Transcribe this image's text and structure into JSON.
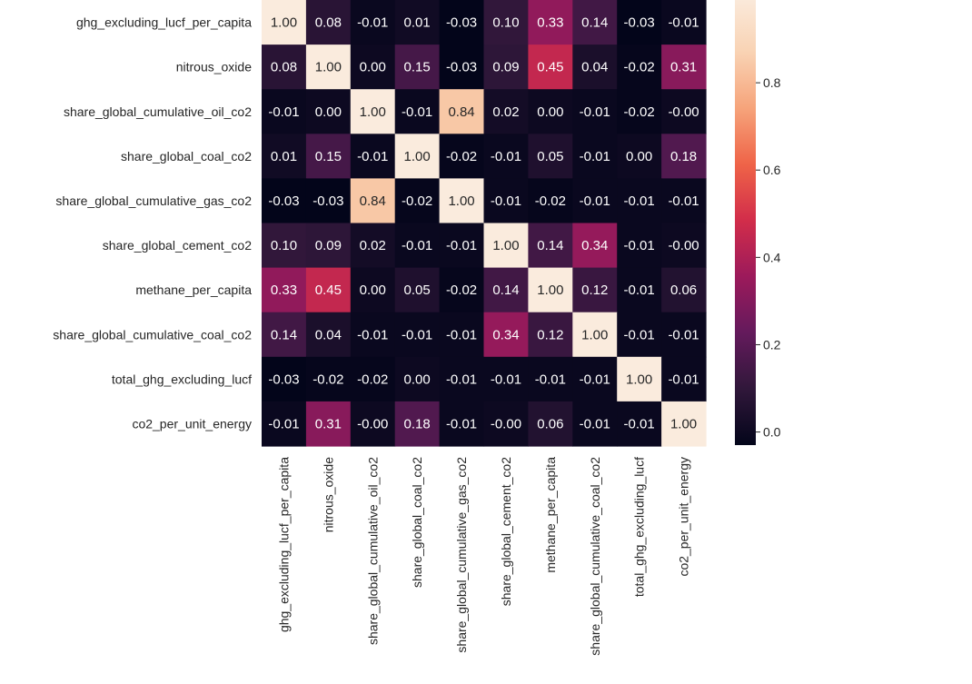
{
  "chart_data": {
    "type": "heatmap",
    "title": "",
    "xlabel": "",
    "ylabel": "",
    "rows": [
      "ghg_excluding_lucf_per_capita",
      "nitrous_oxide",
      "share_global_cumulative_oil_co2",
      "share_global_coal_co2",
      "share_global_cumulative_gas_co2",
      "share_global_cement_co2",
      "methane_per_capita",
      "share_global_cumulative_coal_co2",
      "total_ghg_excluding_lucf",
      "co2_per_unit_energy"
    ],
    "columns": [
      "ghg_excluding_lucf_per_capita",
      "nitrous_oxide",
      "share_global_cumulative_oil_co2",
      "share_global_coal_co2",
      "share_global_cumulative_gas_co2",
      "share_global_cement_co2",
      "methane_per_capita",
      "share_global_cumulative_coal_co2",
      "total_ghg_excluding_lucf",
      "co2_per_unit_energy"
    ],
    "values": [
      [
        1.0,
        0.08,
        -0.01,
        0.01,
        -0.03,
        0.1,
        0.33,
        0.14,
        -0.03,
        -0.01
      ],
      [
        0.08,
        1.0,
        0.0,
        0.15,
        -0.03,
        0.09,
        0.45,
        0.04,
        -0.02,
        0.31
      ],
      [
        -0.01,
        0.0,
        1.0,
        -0.01,
        0.84,
        0.02,
        0.0,
        -0.01,
        -0.02,
        -0.0
      ],
      [
        0.01,
        0.15,
        -0.01,
        1.0,
        -0.02,
        -0.01,
        0.05,
        -0.01,
        0.0,
        0.18
      ],
      [
        -0.03,
        -0.03,
        0.84,
        -0.02,
        1.0,
        -0.01,
        -0.02,
        -0.01,
        -0.01,
        -0.01
      ],
      [
        0.1,
        0.09,
        0.02,
        -0.01,
        -0.01,
        1.0,
        0.14,
        0.34,
        -0.01,
        -0.0
      ],
      [
        0.33,
        0.45,
        0.0,
        0.05,
        -0.02,
        0.14,
        1.0,
        0.12,
        -0.01,
        0.06
      ],
      [
        0.14,
        0.04,
        -0.01,
        -0.01,
        -0.01,
        0.34,
        0.12,
        1.0,
        -0.01,
        -0.01
      ],
      [
        -0.03,
        -0.02,
        -0.02,
        0.0,
        -0.01,
        -0.01,
        -0.01,
        -0.01,
        1.0,
        -0.01
      ],
      [
        -0.01,
        0.31,
        -0.0,
        0.18,
        -0.01,
        -0.0,
        0.06,
        -0.01,
        -0.01,
        1.0
      ]
    ],
    "annotations": [
      [
        "1.00",
        "0.08",
        "-0.01",
        "0.01",
        "-0.03",
        "0.10",
        "0.33",
        "0.14",
        "-0.03",
        "-0.01"
      ],
      [
        "0.08",
        "1.00",
        "0.00",
        "0.15",
        "-0.03",
        "0.09",
        "0.45",
        "0.04",
        "-0.02",
        "0.31"
      ],
      [
        "-0.01",
        "0.00",
        "1.00",
        "-0.01",
        "0.84",
        "0.02",
        "0.00",
        "-0.01",
        "-0.02",
        "-0.00"
      ],
      [
        "0.01",
        "0.15",
        "-0.01",
        "1.00",
        "-0.02",
        "-0.01",
        "0.05",
        "-0.01",
        "0.00",
        "0.18"
      ],
      [
        "-0.03",
        "-0.03",
        "0.84",
        "-0.02",
        "1.00",
        "-0.01",
        "-0.02",
        "-0.01",
        "-0.01",
        "-0.01"
      ],
      [
        "0.10",
        "0.09",
        "0.02",
        "-0.01",
        "-0.01",
        "1.00",
        "0.14",
        "0.34",
        "-0.01",
        "-0.00"
      ],
      [
        "0.33",
        "0.45",
        "0.00",
        "0.05",
        "-0.02",
        "0.14",
        "1.00",
        "0.12",
        "-0.01",
        "0.06"
      ],
      [
        "0.14",
        "0.04",
        "-0.01",
        "-0.01",
        "-0.01",
        "0.34",
        "0.12",
        "1.00",
        "-0.01",
        "-0.01"
      ],
      [
        "-0.03",
        "-0.02",
        "-0.02",
        "0.00",
        "-0.01",
        "-0.01",
        "-0.01",
        "-0.01",
        "1.00",
        "-0.01"
      ],
      [
        "-0.01",
        "0.31",
        "-0.00",
        "0.18",
        "-0.01",
        "-0.00",
        "0.06",
        "-0.01",
        "-0.01",
        "1.00"
      ]
    ],
    "colorbar": {
      "range": [
        -0.03,
        1.0
      ],
      "ticks": [
        "0.0",
        "0.2",
        "0.4",
        "0.6",
        "0.8",
        "1.0"
      ],
      "colormap": "rocket",
      "colormap_stops": [
        "#03051a",
        "#30173a",
        "#641a5c",
        "#9c1a5b",
        "#d22d4a",
        "#ef6448",
        "#f6a47b",
        "#f9d3b4",
        "#faebdd"
      ]
    },
    "grid": false,
    "legend": "colorbar-right"
  }
}
